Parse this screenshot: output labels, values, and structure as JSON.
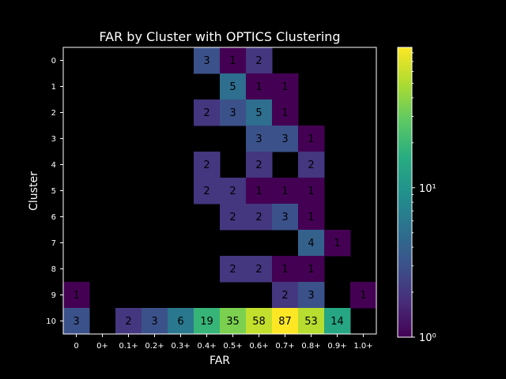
{
  "chart_data": {
    "type": "heatmap",
    "title": "FAR by Cluster with OPTICS Clustering",
    "xlabel": "FAR",
    "ylabel": "Cluster",
    "x_tick_labels": [
      "0",
      "0+",
      "0.1+",
      "0.2+",
      "0.3+",
      "0.4+",
      "0.5+",
      "0.6+",
      "0.7+",
      "0.8+",
      "0.9+",
      "1.0+"
    ],
    "y_tick_labels": [
      "0",
      "1",
      "2",
      "3",
      "4",
      "5",
      "6",
      "7",
      "8",
      "9",
      "10"
    ],
    "colorscale": "viridis",
    "color_scale_type": "log",
    "colorbar": {
      "min": 1,
      "max": 87,
      "ticks": [
        {
          "value": 1,
          "label": "10⁰"
        },
        {
          "value": 10,
          "label": "10¹"
        }
      ]
    },
    "background_color": "#000000",
    "values": [
      [
        null,
        null,
        null,
        null,
        null,
        3,
        1,
        2,
        null,
        null,
        null,
        null
      ],
      [
        null,
        null,
        null,
        null,
        null,
        null,
        5,
        1,
        1,
        null,
        null,
        null
      ],
      [
        null,
        null,
        null,
        null,
        null,
        2,
        3,
        5,
        1,
        null,
        null,
        null
      ],
      [
        null,
        null,
        null,
        null,
        null,
        null,
        null,
        3,
        3,
        1,
        null,
        null
      ],
      [
        null,
        null,
        null,
        null,
        null,
        2,
        null,
        2,
        null,
        2,
        null,
        null
      ],
      [
        null,
        null,
        null,
        null,
        null,
        2,
        2,
        1,
        1,
        1,
        null,
        null
      ],
      [
        null,
        null,
        null,
        null,
        null,
        null,
        2,
        2,
        3,
        1,
        null,
        null
      ],
      [
        null,
        null,
        null,
        null,
        null,
        null,
        null,
        null,
        null,
        4,
        1,
        null
      ],
      [
        null,
        null,
        null,
        null,
        null,
        null,
        2,
        2,
        1,
        1,
        null,
        null
      ],
      [
        1,
        null,
        null,
        null,
        null,
        null,
        null,
        null,
        2,
        3,
        null,
        1
      ],
      [
        3,
        null,
        2,
        3,
        6,
        19,
        35,
        58,
        87,
        53,
        14,
        null
      ]
    ]
  }
}
